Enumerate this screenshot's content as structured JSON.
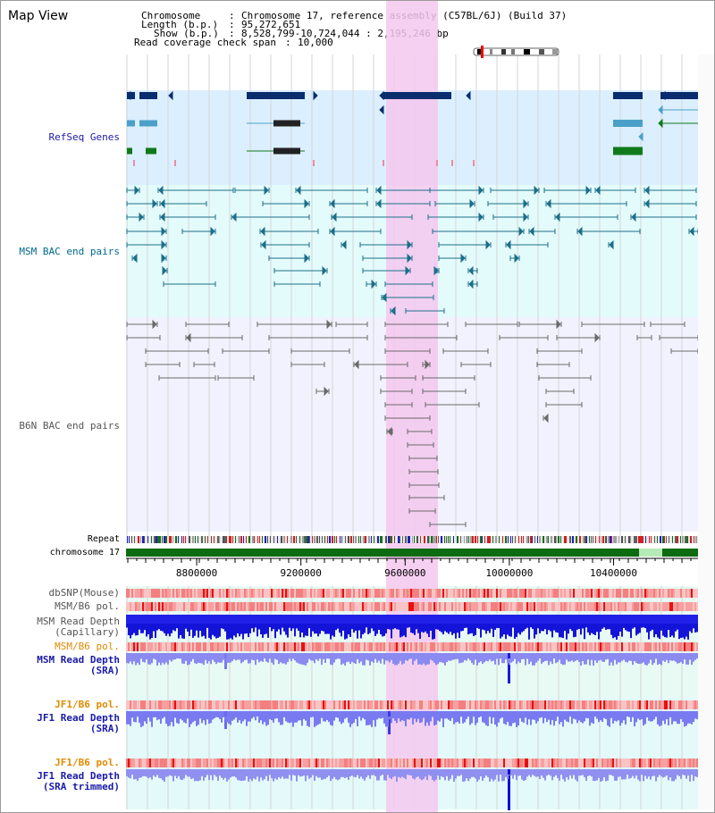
{
  "title": "Map View",
  "header": {
    "chromosome_label": "Chromosome",
    "chromosome_value": "Chromosome 17, reference assembly (C57BL/6J) (Build 37)",
    "length_label": "Length (b.p.)",
    "length_value": "95,272,651",
    "show_label": "Show (b.p.)",
    "show_value": "8,528,799-10,724,044 : 2,195,246 bp",
    "span_label": "Read coverage check span",
    "span_value": "10,000"
  },
  "tracks": {
    "refseq": "RefSeq Genes",
    "msm_bac": "MSM BAC end pairs",
    "b6n_bac": "B6N BAC end pairs",
    "repeat": "Repeat",
    "chromosome": "chromosome 17",
    "dbsnp": "dbSNP(Mouse)",
    "msm_pol_1": "MSM/B6 pol.",
    "msm_depth_cap_1": "MSM Read Depth",
    "msm_depth_cap_2": "(Capillary)",
    "msm_pol_2": "MSM/B6 pol.",
    "msm_depth_sra_1": "MSM Read Depth",
    "msm_depth_sra_2": "(SRA)",
    "jf1_pol_1": "JF1/B6 pol.",
    "jf1_depth_1": "JF1 Read Depth",
    "jf1_depth_2": "(SRA)",
    "jf1_pol_2": "JF1/B6 pol.",
    "jf1_trim_1": "JF1 Read Depth",
    "jf1_trim_2": "(SRA trimmed)"
  },
  "axis": {
    "ticks": [
      {
        "label": "8800000",
        "pos": 8800000
      },
      {
        "label": "9200000",
        "pos": 9200000
      },
      {
        "label": "9600000",
        "pos": 9600000
      },
      {
        "label": "10000000",
        "pos": 10000000
      },
      {
        "label": "10400000",
        "pos": 10400000
      }
    ],
    "range": [
      8528799,
      10724044
    ],
    "highlight": [
      9530000,
      9730000
    ]
  },
  "colors": {
    "refseq_label": "#1a1aa8",
    "msm_label": "#006a8a",
    "b6n_label": "#555555",
    "pol_orange": "#e08a00",
    "depth_blue": "#1010c0",
    "highlight": "#f5c8ee",
    "refseq_bg": "#dcefff",
    "msm_bg": "#e4fbfb",
    "b6n_bg": "#f2f2ff",
    "depth_bg": "#e8faf4"
  }
}
